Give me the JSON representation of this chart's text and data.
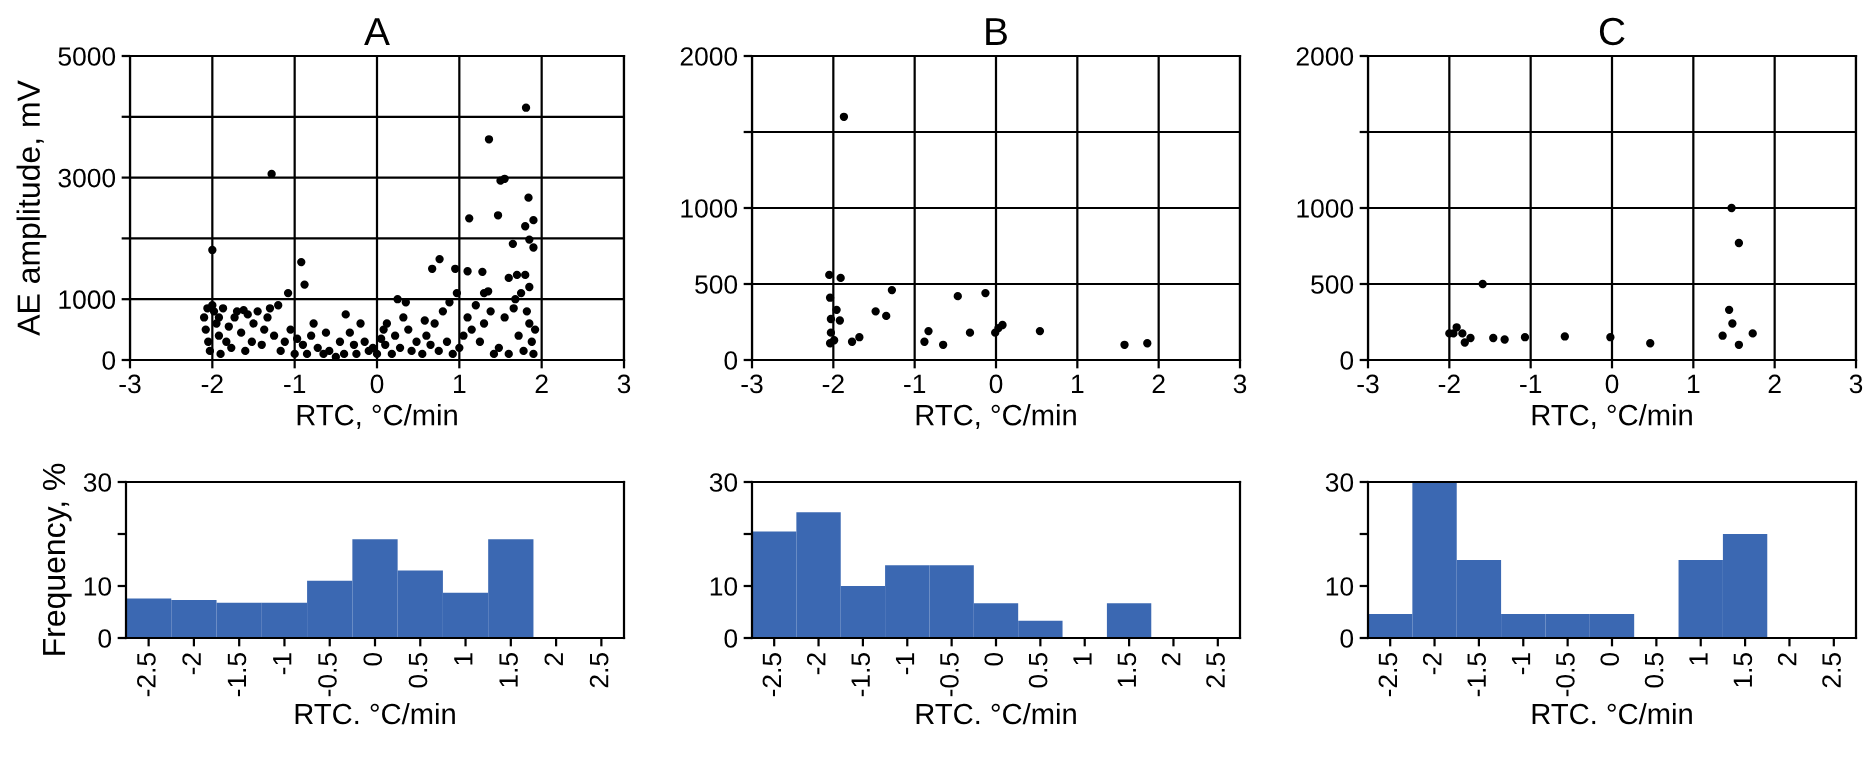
{
  "chart_data": [
    {
      "type": "scatter",
      "title": "A",
      "xlabel": "RTC, °C/min",
      "ylabel": "AE amplitude, mV",
      "marker": "circle",
      "grid": true,
      "xlim": [
        -3,
        3
      ],
      "xticks": [
        -3,
        -2,
        -1,
        0,
        1,
        2,
        3
      ],
      "ylim": [
        0,
        5000
      ],
      "yticks": [
        0,
        1000,
        {
          "value": 2000,
          "label": null
        },
        3000,
        {
          "value": 4000,
          "label": null
        },
        5000
      ],
      "series": [
        {
          "color": "#000000",
          "x": [
            -2.0,
            -1.28,
            1.36,
            1.81,
            -0.92,
            -0.88,
            -1.08,
            0.76,
            0.67,
            1.12,
            1.5,
            1.55,
            1.47,
            1.8,
            1.84,
            1.9,
            1.65,
            1.85,
            1.9,
            0.95,
            1.1,
            1.28,
            1.35,
            1.3,
            1.6,
            1.7,
            1.8,
            1.85,
            1.75,
            1.68,
            -2.1,
            -2.08,
            -2.05,
            -2.03,
            -2.0,
            -1.98,
            -1.95,
            -1.92,
            -1.9,
            -1.87,
            -1.83,
            -1.8,
            -1.77,
            -1.73,
            -1.7,
            -1.65,
            -1.6,
            -1.57,
            -1.52,
            -1.5,
            -1.45,
            -1.4,
            -1.37,
            -1.33,
            -1.3,
            -1.25,
            -1.2,
            -1.17,
            -1.12,
            -1.05,
            -1.0,
            -0.97,
            -0.9,
            -0.85,
            -0.8,
            -0.77,
            -0.72,
            -0.65,
            -0.58,
            -0.5,
            -0.45,
            -0.4,
            -0.38,
            -0.33,
            -0.28,
            -0.25,
            -0.2,
            -0.15,
            -0.1,
            -0.05,
            0.0,
            0.05,
            0.1,
            0.12,
            0.18,
            0.22,
            0.25,
            0.28,
            0.32,
            0.35,
            0.38,
            0.42,
            0.48,
            0.55,
            0.6,
            0.65,
            0.7,
            0.75,
            0.8,
            0.85,
            0.88,
            0.92,
            0.97,
            1.0,
            1.05,
            1.1,
            1.15,
            1.2,
            1.25,
            1.3,
            1.38,
            1.42,
            1.48,
            1.55,
            1.6,
            1.66,
            1.72,
            1.78,
            1.82,
            1.85,
            1.88,
            1.9,
            1.92,
            -1.92,
            -2.06,
            -1.62,
            -0.62,
            0.08,
            0.58
          ],
          "values": [
            1810,
            3060,
            3630,
            4150,
            1610,
            1240,
            1100,
            1660,
            1500,
            2330,
            2950,
            2980,
            2380,
            2200,
            2670,
            2300,
            1910,
            1980,
            1850,
            1500,
            1460,
            1450,
            1130,
            1100,
            1350,
            1400,
            1400,
            1200,
            1100,
            1000,
            700,
            500,
            300,
            150,
            900,
            800,
            600,
            400,
            100,
            850,
            300,
            550,
            200,
            700,
            800,
            450,
            150,
            750,
            300,
            600,
            800,
            250,
            500,
            700,
            850,
            400,
            900,
            150,
            300,
            500,
            100,
            350,
            250,
            100,
            400,
            600,
            200,
            100,
            150,
            50,
            300,
            100,
            750,
            450,
            250,
            100,
            600,
            300,
            150,
            200,
            100,
            350,
            250,
            600,
            100,
            400,
            1000,
            200,
            700,
            950,
            500,
            150,
            300,
            100,
            400,
            250,
            600,
            150,
            800,
            300,
            950,
            100,
            1100,
            200,
            400,
            700,
            500,
            900,
            300,
            600,
            800,
            100,
            200,
            700,
            100,
            850,
            400,
            150,
            800,
            600,
            300,
            100,
            500,
            700,
            850,
            820,
            450,
            500,
            650
          ]
        }
      ]
    },
    {
      "type": "scatter",
      "title": "B",
      "xlabel": "RTC, °C/min",
      "marker": "circle",
      "grid": true,
      "xlim": [
        -3,
        3
      ],
      "xticks": [
        -3,
        -2,
        -1,
        0,
        1,
        2,
        3
      ],
      "ylim": [
        0,
        2000
      ],
      "yticks": [
        0,
        500,
        1000,
        {
          "value": 1500,
          "label": null
        },
        2000
      ],
      "series": [
        {
          "color": "#000000",
          "x": [
            -1.87,
            -2.05,
            -1.91,
            -2.04,
            -1.96,
            -2.03,
            -1.92,
            -2.03,
            -1.99,
            -2.04,
            -1.77,
            -1.68,
            -1.48,
            -1.35,
            -1.28,
            -0.88,
            -0.83,
            -0.65,
            -0.47,
            -0.32,
            -0.13,
            -0.01,
            0.03,
            0.08,
            0.54,
            1.58,
            1.86
          ],
          "values": [
            1600,
            560,
            540,
            410,
            330,
            270,
            260,
            180,
            130,
            110,
            120,
            150,
            320,
            290,
            460,
            120,
            190,
            100,
            420,
            180,
            440,
            180,
            210,
            230,
            190,
            100,
            110
          ]
        }
      ]
    },
    {
      "type": "scatter",
      "title": "C",
      "xlabel": "RTC, °C/min",
      "marker": "circle",
      "grid": true,
      "xlim": [
        -3,
        3
      ],
      "xticks": [
        -3,
        -2,
        -1,
        0,
        1,
        2,
        3
      ],
      "ylim": [
        0,
        2000
      ],
      "yticks": [
        0,
        500,
        1000,
        {
          "value": 1500,
          "label": null
        },
        2000
      ],
      "series": [
        {
          "color": "#000000",
          "x": [
            1.47,
            1.56,
            -1.59,
            1.44,
            1.48,
            1.36,
            1.56,
            1.73,
            -2.0,
            -1.91,
            -1.84,
            -1.81,
            -1.74,
            -1.46,
            -1.32,
            -1.07,
            -0.58,
            -0.02,
            0.47,
            -1.95
          ],
          "values": [
            1000,
            770,
            500,
            330,
            240,
            160,
            100,
            175,
            175,
            215,
            175,
            115,
            145,
            145,
            135,
            150,
            155,
            150,
            110,
            175
          ]
        }
      ]
    },
    {
      "type": "bar",
      "xlabel": "RTC. °C/min",
      "ylabel": "Frequency, %",
      "ylim": [
        0,
        30
      ],
      "yticks": [
        0,
        10,
        {
          "value": 20,
          "label": null
        },
        30
      ],
      "categories": [
        "-2.5",
        "-2",
        "-1.5",
        "-1",
        "-0.5",
        "0",
        "0.5",
        "1",
        "1.5",
        "2",
        "2.5"
      ],
      "series": [
        {
          "color": "#3b68b2",
          "values": [
            7.6,
            7.3,
            6.8,
            6.8,
            11,
            19,
            13,
            8.7,
            19,
            0,
            0
          ]
        }
      ]
    },
    {
      "type": "bar",
      "xlabel": "RTC. °C/min",
      "ylim": [
        0,
        30
      ],
      "yticks": [
        0,
        10,
        {
          "value": 20,
          "label": null
        },
        30
      ],
      "categories": [
        "-2.5",
        "-2",
        "-1.5",
        "-1",
        "-0.5",
        "0",
        "0.5",
        "1",
        "1.5",
        "2",
        "2.5"
      ],
      "series": [
        {
          "color": "#3b68b2",
          "values": [
            20.5,
            24.2,
            10,
            14,
            14,
            6.7,
            3.3,
            0,
            6.7,
            0,
            0
          ]
        }
      ]
    },
    {
      "type": "bar",
      "xlabel": "RTC. °C/min",
      "ylim": [
        0,
        30
      ],
      "yticks": [
        0,
        10,
        {
          "value": 20,
          "label": null
        },
        30
      ],
      "categories": [
        "-2.5",
        "-2",
        "-1.5",
        "-1",
        "-0.5",
        "0",
        "0.5",
        "1",
        "1.5",
        "2",
        "2.5"
      ],
      "series": [
        {
          "color": "#3b68b2",
          "values": [
            4.6,
            30,
            15,
            4.6,
            4.6,
            4.6,
            0,
            15,
            20,
            0,
            0
          ]
        }
      ]
    }
  ]
}
